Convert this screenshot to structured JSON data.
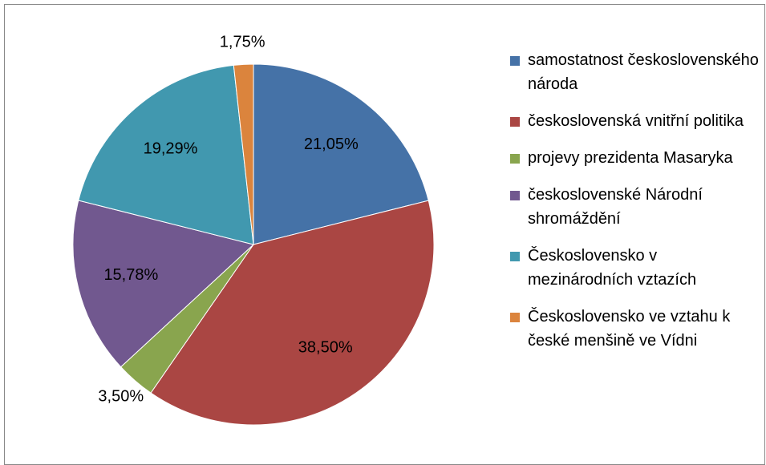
{
  "chart_data": {
    "type": "pie",
    "categories": [
      "samostatnost československého národa",
      "československá vnitřní politika",
      "projevy prezidenta Masaryka",
      "československé Národní shromáždění",
      "Československo v mezinárodních vztazích",
      "Československo ve vztahu k české menšině ve Vídni"
    ],
    "values": [
      21.05,
      38.5,
      3.5,
      15.78,
      19.29,
      1.75
    ],
    "value_labels": [
      "21,05%",
      "38,50%",
      "3,50%",
      "15,78%",
      "19,29%",
      "1,75%"
    ],
    "colors": [
      "#4572a7",
      "#aa4643",
      "#89a54e",
      "#71588f",
      "#4198af",
      "#db843d"
    ],
    "legend": "right"
  }
}
